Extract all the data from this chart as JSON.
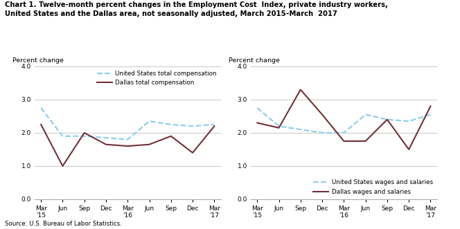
{
  "title": "Chart 1. Twelve-month percent changes in the Employment Cost  Index, private industry workers,\nUnited States and the Dallas area, not seasonally adjusted, March 2015–March  2017",
  "ylabel": "Percent change",
  "source": "Source: U.S. Bureau of Labor Statistics.",
  "x_labels": [
    "Mar\n'15",
    "Jun",
    "Sep",
    "Dec",
    "Mar\n'16",
    "Jun",
    "Sep",
    "Dec",
    "Mar\n'17"
  ],
  "ylim": [
    0.0,
    4.0
  ],
  "yticks": [
    0.0,
    1.0,
    2.0,
    3.0,
    4.0
  ],
  "left_us_total": [
    2.75,
    1.9,
    1.9,
    1.85,
    1.8,
    2.35,
    2.25,
    2.2,
    2.25
  ],
  "left_dallas_total": [
    2.25,
    1.0,
    2.0,
    1.65,
    1.6,
    1.65,
    1.9,
    1.4,
    2.2
  ],
  "right_us_wages": [
    2.75,
    2.2,
    2.1,
    2.0,
    2.0,
    2.55,
    2.4,
    2.35,
    2.55
  ],
  "right_dallas_wages": [
    2.3,
    2.15,
    3.3,
    2.55,
    1.75,
    1.75,
    2.4,
    1.5,
    2.8
  ],
  "us_color": "#87CEEB",
  "dallas_color": "#722F37",
  "linewidth": 1.5,
  "left_legend_us": "United States total compensation",
  "left_legend_dallas": "Dallas total compensation",
  "right_legend_us": "United States wages and salaries",
  "right_legend_dallas": "Dallas wages and salaries",
  "bg_color": "#ffffff",
  "grid_color": "#c8c8c8"
}
